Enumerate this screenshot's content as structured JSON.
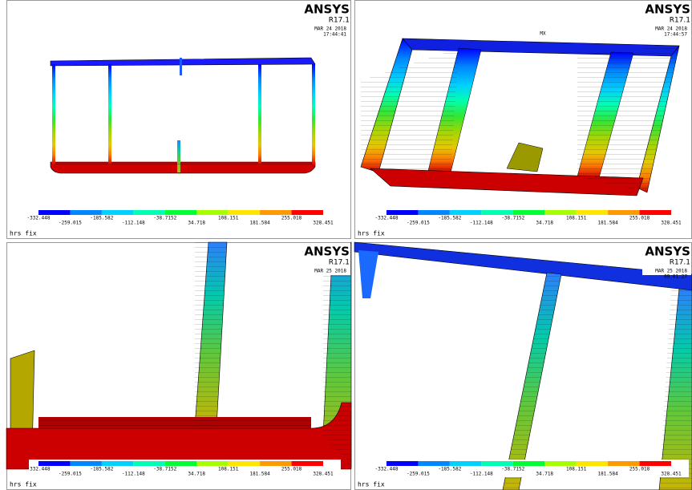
{
  "legend": {
    "labels_top": [
      "-332.448",
      "-185.582",
      "-38.7152",
      "108.151",
      "255.018"
    ],
    "labels_bottom": [
      "-259.015",
      "-112.148",
      "34.718",
      "181.584",
      "328.451"
    ]
  },
  "panels": [
    {
      "logo": "ANSYS",
      "version": "R17.1",
      "date": "MAR 24 2018",
      "time": "17:44:41",
      "caption": "hrs fix"
    },
    {
      "logo": "ANSYS",
      "version": "R17.1",
      "date": "MAR 24 2018",
      "time": "17:44:57",
      "caption": "hrs fix",
      "marker": "MX"
    },
    {
      "logo": "ANSYS",
      "version": "R17.1",
      "date": "MAR 25 2018",
      "caption": "hrs fix"
    },
    {
      "logo": "ANSYS",
      "version": "R17.1",
      "date": "MAR 25 2018",
      "time": "09:01:27",
      "caption": "hrs fix"
    }
  ]
}
